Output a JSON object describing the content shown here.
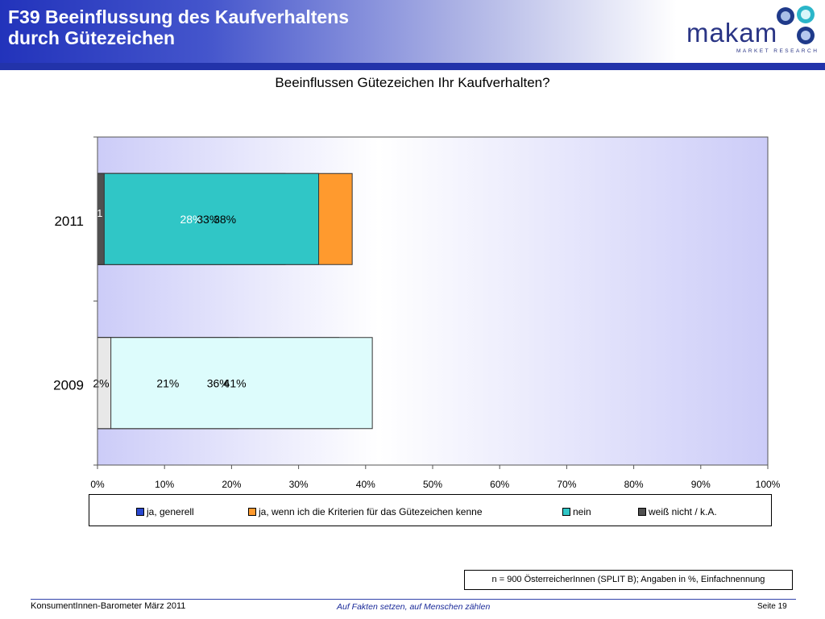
{
  "header": {
    "title_line1": "F39 Beeinflussung des Kaufverhaltens",
    "title_line2": "durch Gütezeichen"
  },
  "logo": {
    "word": "makam",
    "tagline": "MARKET RESEARCH"
  },
  "chart_data": {
    "type": "bar",
    "orientation": "horizontal",
    "stacked": true,
    "title": "Beeinflussen Gütezeichen Ihr Kaufverhalten?",
    "categories": [
      "2011",
      "2009"
    ],
    "series": [
      {
        "name": "ja, generell",
        "values": [
          28,
          21
        ],
        "labels": [
          "28%",
          "21%"
        ],
        "color": "#2a48d0",
        "color_2009": "#9fc8f0"
      },
      {
        "name": "ja, wenn ich die Kriterien für das Gütezeichen kenne",
        "values": [
          38,
          36
        ],
        "labels": [
          "38%",
          "36%"
        ],
        "color": "#ff9a2e",
        "color_2009": "#ffd880"
      },
      {
        "name": "nein",
        "values": [
          33,
          41
        ],
        "labels": [
          "33%",
          "41%"
        ],
        "color": "#30c6c6",
        "color_2009": "#ddfcfc"
      },
      {
        "name": "weiß nicht / k.A.",
        "values": [
          1,
          2
        ],
        "labels": [
          "1",
          "2%"
        ],
        "color": "#505050",
        "color_2009": "#e8e8e8"
      }
    ],
    "xlim": [
      0,
      100
    ],
    "xticks": [
      "0%",
      "10%",
      "20%",
      "30%",
      "40%",
      "50%",
      "60%",
      "70%",
      "80%",
      "90%",
      "100%"
    ],
    "legend_position": "bottom",
    "grid": false
  },
  "note": "n = 900 ÖsterreicherInnen (SPLIT B); Angaben in %, Einfachnennung",
  "footer": {
    "left": "KonsumentInnen-Barometer März  2011",
    "center": "Auf Fakten setzen, auf Menschen zählen",
    "right": "Seite 19"
  }
}
